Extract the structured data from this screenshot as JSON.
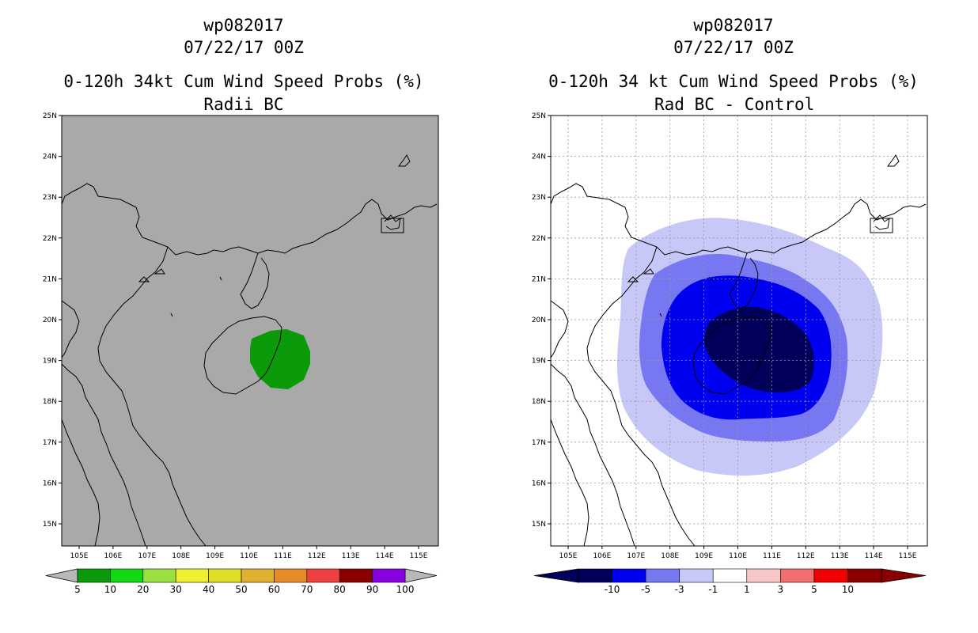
{
  "panels": [
    {
      "id": "left",
      "storm_id": "wp082017",
      "datetime": "07/22/17 00Z",
      "product": "0-120h 34kt Cum Wind Speed Probs (%)",
      "subtitle": "Radii BC",
      "colors": {
        "background": "#a9a9a9",
        "probability_area": "#0a9a0a"
      }
    },
    {
      "id": "right",
      "storm_id": "wp082017",
      "datetime": "07/22/17 00Z",
      "product": "0-120h 34 kt Cum Wind Speed Probs (%)",
      "subtitle": "Rad BC - Control",
      "colors": {
        "background": "#ffffff",
        "level_1": "#c8c8f8",
        "level_3": "#7777f2",
        "level_5": "#0000f0",
        "level_10": "#00005a"
      }
    }
  ],
  "axes": {
    "lat_labels": [
      "25N",
      "24N",
      "23N",
      "22N",
      "21N",
      "20N",
      "19N",
      "18N",
      "17N",
      "16N",
      "15N"
    ],
    "lon_labels": [
      "105E",
      "106E",
      "107E",
      "108E",
      "109E",
      "110E",
      "111E",
      "112E",
      "113E",
      "114E",
      "115E"
    ]
  },
  "colorbar_left": {
    "colors": [
      "#0a9a0a",
      "#11d811",
      "#9ae040",
      "#f0f030",
      "#dede28",
      "#e0b030",
      "#e88a28",
      "#ee4040",
      "#8a0000",
      "#8800dd"
    ],
    "labels": [
      "5",
      "10",
      "20",
      "30",
      "40",
      "50",
      "60",
      "70",
      "80",
      "90",
      "100"
    ]
  },
  "colorbar_right": {
    "colors": [
      "#00005a",
      "#0000f0",
      "#7777f2",
      "#c8c8f8",
      "#ffffff",
      "#f8c8c8",
      "#f07070",
      "#f00000",
      "#8a0000"
    ],
    "labels": [
      "-10",
      "-5",
      "-3",
      "-1",
      "1",
      "3",
      "5",
      "10"
    ]
  }
}
